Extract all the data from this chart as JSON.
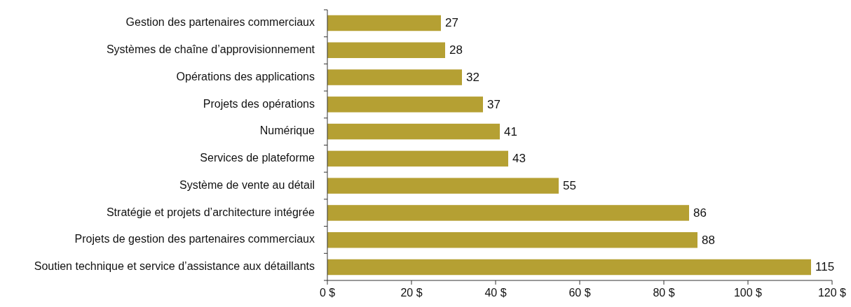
{
  "chart_data": {
    "type": "bar",
    "orientation": "horizontal",
    "categories": [
      "Gestion des partenaires commerciaux",
      "Systèmes de chaîne d’approvisionnement",
      "Opérations des applications",
      "Projets des opérations",
      "Numérique",
      "Services de plateforme",
      "Système de vente au détail",
      "Stratégie et projets d’architecture intégrée",
      "Projets de gestion des partenaires commerciaux",
      "Soutien technique et service d’assistance aux détaillants"
    ],
    "values": [
      27,
      28,
      32,
      37,
      41,
      43,
      55,
      86,
      88,
      115
    ],
    "color": "#b5a033",
    "xlim": [
      0,
      120
    ],
    "xticks": [
      {
        "value": 0,
        "label": "0 $"
      },
      {
        "value": 20,
        "label": "20 $"
      },
      {
        "value": 40,
        "label": "40 $"
      },
      {
        "value": 60,
        "label": "60 $"
      },
      {
        "value": 80,
        "label": "80 $"
      },
      {
        "value": 100,
        "label": "100 $"
      },
      {
        "value": 120,
        "label": "120 $"
      }
    ],
    "data_labels": true
  }
}
